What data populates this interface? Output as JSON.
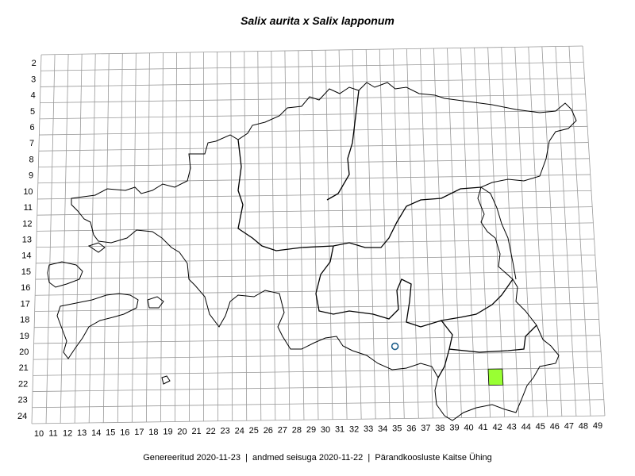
{
  "title": "Salix aurita x Salix lapponum",
  "footer": {
    "generated": "Genereeritud 2020-11-23",
    "data_state": "andmed seisuga 2020-11-22",
    "publisher": "Pärandkoosluste Kaitse Ühing",
    "separator": "|"
  },
  "grid": {
    "columns": [
      10,
      11,
      12,
      13,
      14,
      15,
      16,
      17,
      18,
      19,
      20,
      21,
      22,
      23,
      24,
      25,
      26,
      27,
      28,
      29,
      30,
      31,
      32,
      33,
      34,
      35,
      36,
      37,
      38,
      39,
      40,
      41,
      42,
      43,
      44,
      45,
      46,
      47,
      48,
      49
    ],
    "rows": [
      2,
      3,
      4,
      5,
      6,
      7,
      8,
      9,
      10,
      11,
      12,
      13,
      14,
      15,
      16,
      17,
      18,
      19,
      20,
      21,
      22,
      23,
      24
    ]
  },
  "observations": [
    {
      "kind": "square",
      "col": 42,
      "row": 22,
      "color": "#99ff33"
    },
    {
      "kind": "circle",
      "col": 35,
      "row": 20,
      "color": "#1f5f8b"
    }
  ],
  "colors": {
    "grid": "#999999",
    "border": "#000000"
  }
}
